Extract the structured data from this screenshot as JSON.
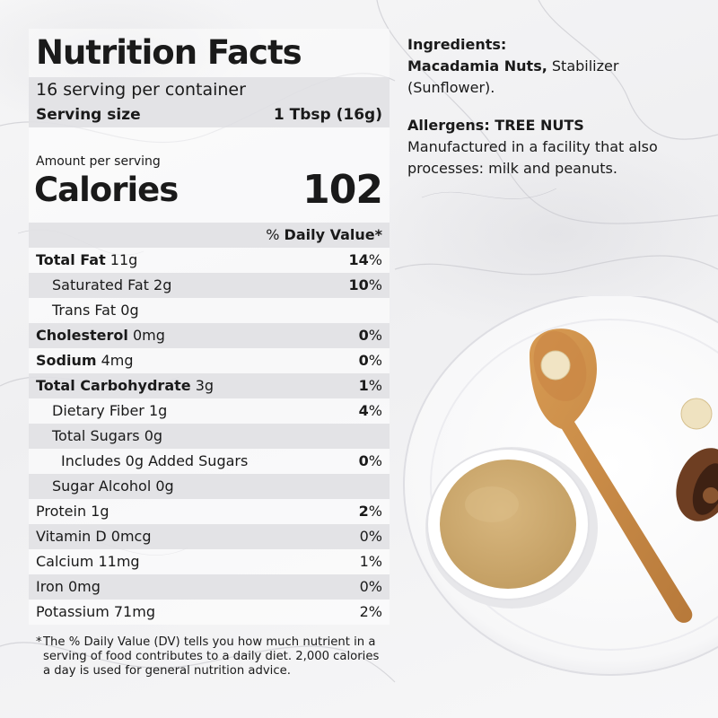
{
  "nutrition": {
    "title": "Nutrition Facts",
    "servings_per_container": "16 serving per container",
    "serving_size_label": "Serving size",
    "serving_size_value": "1 Tbsp (16g)",
    "amount_per_serving": "Amount per serving",
    "calories_label": "Calories",
    "calories_value": "102",
    "dv_prefix": "% ",
    "dv_label": "Daily Value*",
    "rows": [
      {
        "name_bold": "Total Fat",
        "amount": " 11g",
        "pct_bold": "14",
        "pct_rest": "%"
      },
      {
        "name_bold": "",
        "amount": "Saturated Fat 2g",
        "pct_bold": "10",
        "pct_rest": "%"
      },
      {
        "name_bold": "",
        "amount": "Trans Fat 0g",
        "pct_bold": "",
        "pct_rest": ""
      },
      {
        "name_bold": "Cholesterol",
        "amount": " 0mg",
        "pct_bold": "0",
        "pct_rest": "%"
      },
      {
        "name_bold": "Sodium",
        "amount": " 4mg",
        "pct_bold": "0",
        "pct_rest": "%"
      },
      {
        "name_bold": "Total Carbohydrate",
        "amount": " 3g",
        "pct_bold": "1",
        "pct_rest": "%"
      },
      {
        "name_bold": "",
        "amount": "Dietary Fiber 1g",
        "pct_bold": "4",
        "pct_rest": "%"
      },
      {
        "name_bold": "",
        "amount": "Total Sugars 0g",
        "pct_bold": "",
        "pct_rest": ""
      },
      {
        "name_bold": "",
        "amount": "Includes 0g Added Sugars",
        "pct_bold": "0",
        "pct_rest": "%"
      },
      {
        "name_bold": "",
        "amount": "Sugar Alcohol 0g",
        "pct_bold": "",
        "pct_rest": ""
      },
      {
        "name_bold": "",
        "amount": "Protein 1g",
        "pct_bold": "2",
        "pct_rest": "%"
      },
      {
        "name_bold": "",
        "amount": "Vitamin D 0mcg",
        "pct_bold": "",
        "pct_rest": "0%"
      },
      {
        "name_bold": "",
        "amount": "Calcium 11mg",
        "pct_bold": "",
        "pct_rest": "1%"
      },
      {
        "name_bold": "",
        "amount": "Iron 0mg",
        "pct_bold": "",
        "pct_rest": "0%"
      },
      {
        "name_bold": "",
        "amount": "Potassium 71mg",
        "pct_bold": "",
        "pct_rest": "2%"
      }
    ],
    "footnote_star": "*",
    "footnote": "The % Daily Value (DV) tells you how much nutrient in a serving of food contributes to a daily diet. 2,000 calories a day is used for general nutrition advice."
  },
  "ingredients": {
    "heading": "Ingredients:",
    "bold_part": "Macadamia Nuts,",
    "rest": " Stabilizer (Sunflower)."
  },
  "allergens": {
    "heading": "Allergens: TREE NUTS",
    "text": "Manufactured in a facility that also processes: milk and peanuts."
  },
  "colors": {
    "spread": "#c9a56b",
    "spoon": "#c68a45",
    "panel_gray": "#e1e1e4",
    "background": "#f3f3f5"
  }
}
